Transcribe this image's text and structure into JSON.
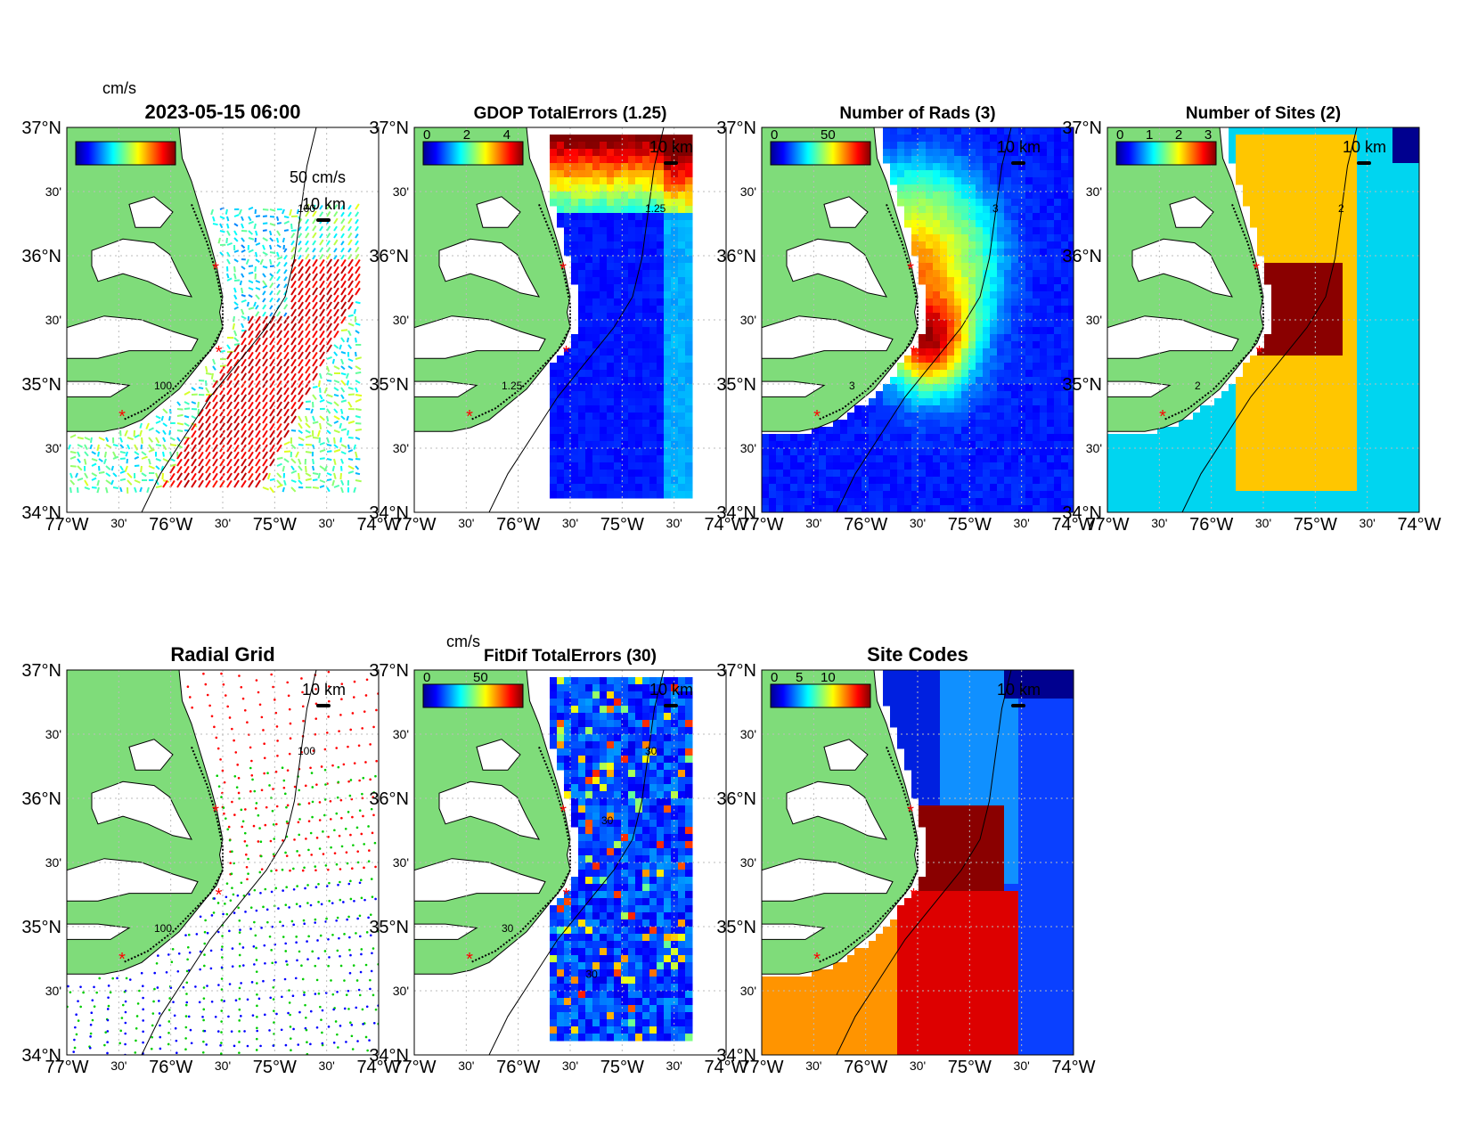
{
  "figure": {
    "panels": [
      {
        "id": "currents",
        "title": "2023-05-15 06:00",
        "colorbar": {
          "unit": "cm/s",
          "ticks": []
        },
        "ref_vector_label": "50 cm/s",
        "scale_label": "10 km",
        "contour_labels": [
          "100",
          "100"
        ],
        "fill": "vectors"
      },
      {
        "id": "gdop",
        "title": "GDOP TotalErrors (1.25)",
        "colorbar": {
          "unit": "",
          "ticks": [
            "0",
            "2",
            "4"
          ]
        },
        "scale_label": "10 km",
        "contour_labels": [
          "1.25",
          "1.25"
        ],
        "fill": "gdop"
      },
      {
        "id": "nrads",
        "title": "Number of Rads (3)",
        "colorbar": {
          "unit": "",
          "ticks": [
            "0",
            "50"
          ]
        },
        "scale_label": "10 km",
        "contour_labels": [
          "3",
          "3"
        ],
        "fill": "nrads"
      },
      {
        "id": "nsites",
        "title": "Number of Sites (2)",
        "colorbar": {
          "unit": "",
          "ticks": [
            "0",
            "1",
            "2",
            "3"
          ]
        },
        "scale_label": "10 km",
        "contour_labels": [
          "2",
          "2"
        ],
        "fill": "nsites"
      },
      {
        "id": "radial-grid",
        "title": "Radial Grid",
        "colorbar": null,
        "scale_label": "10 km",
        "contour_labels": [
          "100",
          "100"
        ],
        "fill": "radial"
      },
      {
        "id": "fitdif",
        "title": "FitDif TotalErrors (30)",
        "colorbar": {
          "unit": "cm/s",
          "ticks": [
            "0",
            "50"
          ]
        },
        "scale_label": "10 km",
        "contour_labels": [
          "30",
          "30",
          "30",
          "30"
        ],
        "fill": "fitdif"
      },
      {
        "id": "site-codes",
        "title": "Site Codes",
        "colorbar": {
          "unit": "",
          "ticks": [
            "0",
            "5",
            "10"
          ]
        },
        "scale_label": "10 km",
        "contour_labels": [],
        "fill": "sitecodes"
      }
    ],
    "axes": {
      "lat_labels": [
        "37°N",
        "30'",
        "36°N",
        "30'",
        "35°N",
        "30'",
        "34°N"
      ],
      "lon_labels": [
        "77°W",
        "30'",
        "76°W",
        "30'",
        "75°W",
        "30'",
        "74°W"
      ],
      "lat_range": [
        34,
        37
      ],
      "lon_range": [
        -77,
        -74
      ]
    },
    "colors": {
      "land": "#7fdc7a",
      "ocean_bg": "#ffffff",
      "site_marker": "#ff0000",
      "radial_site_colors": [
        "#ff0000",
        "#00cc00",
        "#0000ff"
      ]
    },
    "sites": [
      {
        "lon": -75.55,
        "lat": 35.9
      },
      {
        "lon": -75.52,
        "lat": 35.25
      },
      {
        "lon": -76.45,
        "lat": 34.75
      }
    ]
  }
}
